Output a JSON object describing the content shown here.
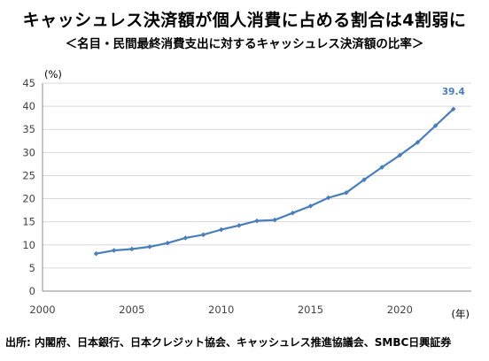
{
  "title": "キャッシュレス決済額が個人消費に占める割合は4割弱に",
  "subtitle": "＜名目・民間最終消費支出に対するキャッシュレス決済額の比率＞",
  "source": "出所: 内閣府、日本銀行、日本クレジット協会、キャッシュレス推進協議会、SMBC日興証券",
  "colors": {
    "series": "#4a7ebb",
    "grid": "#d9d9d9",
    "axis": "#8c8c8c"
  },
  "chart_data": {
    "type": "line",
    "y_unit": "(%)",
    "x_unit": "(年)",
    "xlim": [
      2000,
      2024
    ],
    "ylim": [
      0,
      45
    ],
    "x_ticks": [
      2000,
      2005,
      2010,
      2015,
      2020
    ],
    "y_ticks": [
      0,
      5,
      10,
      15,
      20,
      25,
      30,
      35,
      40,
      45
    ],
    "grid": "horizontal",
    "series": [
      {
        "x": [
          2003,
          2004,
          2005,
          2006,
          2007,
          2008,
          2009,
          2010,
          2011,
          2012,
          2013,
          2014,
          2015,
          2016,
          2017,
          2018,
          2019,
          2020,
          2021,
          2022,
          2023
        ],
        "values": [
          8.1,
          8.8,
          9.1,
          9.6,
          10.4,
          11.5,
          12.2,
          13.3,
          14.2,
          15.2,
          15.4,
          16.9,
          18.4,
          20.2,
          21.3,
          24.1,
          26.8,
          29.4,
          32.2,
          35.8,
          39.4
        ]
      }
    ],
    "annotations": [
      {
        "x": 2023,
        "text": "39.4"
      }
    ]
  }
}
